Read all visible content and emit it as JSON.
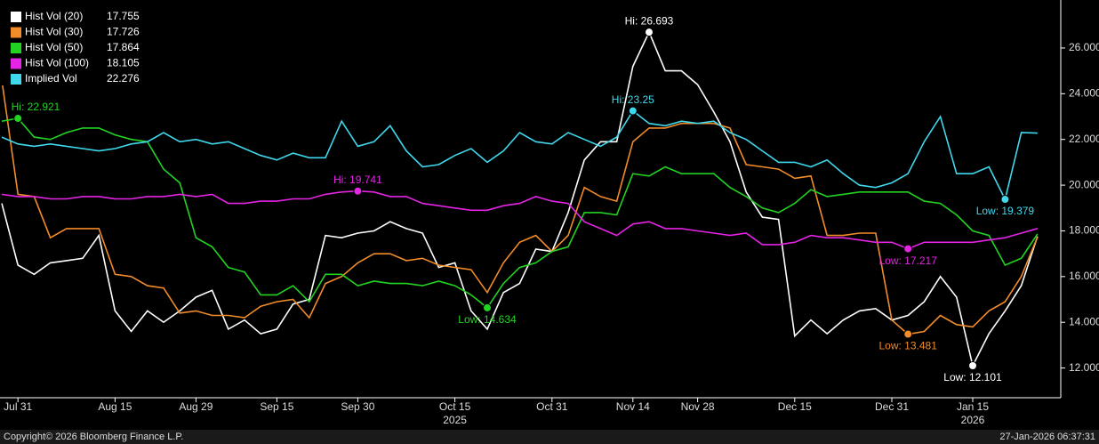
{
  "chart_data": {
    "type": "line",
    "categories": [
      null,
      "Jul 31",
      null,
      null,
      null,
      null,
      null,
      "Aug 15",
      null,
      null,
      null,
      null,
      "Aug 29",
      null,
      null,
      null,
      null,
      "Sep 15",
      null,
      null,
      null,
      null,
      "Sep 30",
      null,
      null,
      null,
      null,
      null,
      "Oct 15",
      null,
      null,
      null,
      null,
      null,
      "Oct 31",
      null,
      null,
      null,
      null,
      "Nov 14",
      null,
      null,
      null,
      "Nov 28",
      null,
      null,
      null,
      null,
      null,
      "Dec 15",
      null,
      null,
      null,
      null,
      null,
      "Dec 31",
      null,
      null,
      null,
      null,
      "Jan 15",
      null,
      null,
      null,
      null
    ],
    "x_years": [
      "2025",
      "2026"
    ],
    "ylim": [
      10.7,
      28.1
    ],
    "yticks": [
      {
        "value": 12,
        "label": "12.000"
      },
      {
        "value": 14,
        "label": "14.000"
      },
      {
        "value": 16,
        "label": "16.000"
      },
      {
        "value": 18,
        "label": "18.000"
      },
      {
        "value": 20,
        "label": "20.000"
      },
      {
        "value": 22,
        "label": "22.000"
      },
      {
        "value": 24,
        "label": "24.000"
      },
      {
        "value": 26,
        "label": "26.000"
      }
    ],
    "series": [
      {
        "name": "Hist Vol (20)",
        "color": "#ffffff",
        "values": [
          19.2,
          16.5,
          16.1,
          16.6,
          16.7,
          16.8,
          17.8,
          14.5,
          13.6,
          14.5,
          14.0,
          14.5,
          15.1,
          15.4,
          13.7,
          14.1,
          13.5,
          13.7,
          14.8,
          15.0,
          17.8,
          17.7,
          17.9,
          18.0,
          18.4,
          18.1,
          17.9,
          16.4,
          16.6,
          14.5,
          13.7,
          15.3,
          15.7,
          17.2,
          17.1,
          18.8,
          21.1,
          21.9,
          21.9,
          25.2,
          26.693,
          25.0,
          25.0,
          24.4,
          23.2,
          21.9,
          19.7,
          18.6,
          18.5,
          13.4,
          14.1,
          13.5,
          14.1,
          14.5,
          14.6,
          14.1,
          14.3,
          14.9,
          16.0,
          15.1,
          12.101,
          13.5,
          14.5,
          15.6,
          17.755
        ],
        "annotations": [
          {
            "index": 40,
            "label": "Hi: 26.693",
            "kind": "hi"
          },
          {
            "index": 60,
            "label": "Low: 12.101",
            "kind": "low"
          }
        ]
      },
      {
        "name": "Hist Vol (30)",
        "color": "#f28c28",
        "values": [
          24.6,
          19.6,
          19.5,
          17.7,
          18.1,
          18.1,
          18.1,
          16.1,
          16.0,
          15.6,
          15.5,
          14.4,
          14.5,
          14.3,
          14.3,
          14.2,
          14.7,
          14.9,
          15.0,
          14.2,
          15.7,
          16.0,
          16.6,
          17.0,
          17.0,
          16.7,
          16.8,
          16.5,
          16.4,
          16.3,
          15.3,
          16.6,
          17.5,
          17.8,
          17.1,
          17.8,
          19.9,
          19.5,
          19.3,
          21.9,
          22.5,
          22.5,
          22.7,
          22.7,
          22.7,
          22.5,
          20.9,
          20.8,
          20.7,
          20.3,
          20.4,
          17.8,
          17.8,
          17.9,
          17.9,
          14.1,
          13.481,
          13.6,
          14.3,
          13.9,
          13.8,
          14.5,
          14.9,
          16.0,
          17.726
        ],
        "annotations": [
          {
            "index": 56,
            "label": "Low: 13.481",
            "kind": "low"
          }
        ]
      },
      {
        "name": "Hist Vol (50)",
        "color": "#22d322",
        "values": [
          22.8,
          22.921,
          22.1,
          22.0,
          22.3,
          22.5,
          22.5,
          22.2,
          22.0,
          21.9,
          20.7,
          20.1,
          17.7,
          17.3,
          16.4,
          16.2,
          15.2,
          15.2,
          15.6,
          14.9,
          16.1,
          16.1,
          15.6,
          15.8,
          15.7,
          15.7,
          15.6,
          15.8,
          15.6,
          15.2,
          14.634,
          15.7,
          16.4,
          16.6,
          17.1,
          17.3,
          18.8,
          18.8,
          18.7,
          20.5,
          20.4,
          20.8,
          20.5,
          20.5,
          20.5,
          19.9,
          19.5,
          19.0,
          18.8,
          19.2,
          19.8,
          19.5,
          19.6,
          19.7,
          19.7,
          19.7,
          19.7,
          19.3,
          19.2,
          18.7,
          18.0,
          17.8,
          16.5,
          16.8,
          17.864
        ],
        "annotations": [
          {
            "index": 1,
            "label": "Hi: 22.921",
            "kind": "hi"
          },
          {
            "index": 30,
            "label": "Low: 14.634",
            "kind": "low"
          }
        ]
      },
      {
        "name": "Hist Vol (100)",
        "color": "#e524e5",
        "values": [
          19.6,
          19.5,
          19.5,
          19.4,
          19.4,
          19.5,
          19.5,
          19.4,
          19.4,
          19.5,
          19.5,
          19.6,
          19.5,
          19.6,
          19.2,
          19.2,
          19.3,
          19.3,
          19.4,
          19.4,
          19.6,
          19.7,
          19.741,
          19.7,
          19.5,
          19.5,
          19.2,
          19.1,
          19.0,
          18.9,
          18.9,
          19.1,
          19.2,
          19.5,
          19.3,
          19.2,
          18.4,
          18.1,
          17.8,
          18.3,
          18.4,
          18.1,
          18.1,
          18.0,
          17.9,
          17.8,
          17.9,
          17.4,
          17.4,
          17.5,
          17.8,
          17.7,
          17.7,
          17.6,
          17.5,
          17.5,
          17.217,
          17.5,
          17.5,
          17.5,
          17.5,
          17.6,
          17.7,
          17.9,
          18.105
        ],
        "annotations": [
          {
            "index": 22,
            "label": "Hi: 19.741",
            "kind": "hi"
          },
          {
            "index": 56,
            "label": "Low: 17.217",
            "kind": "low"
          }
        ]
      },
      {
        "name": "Implied Vol",
        "color": "#3fd8ec",
        "values": [
          22.1,
          21.8,
          21.7,
          21.8,
          21.7,
          21.6,
          21.5,
          21.6,
          21.8,
          21.9,
          22.3,
          21.9,
          22.0,
          21.8,
          21.9,
          21.6,
          21.3,
          21.1,
          21.4,
          21.2,
          21.2,
          22.8,
          21.7,
          21.9,
          22.6,
          21.5,
          20.8,
          20.9,
          21.3,
          21.6,
          21.0,
          21.5,
          22.3,
          21.9,
          21.8,
          22.3,
          22.0,
          21.7,
          22.1,
          23.25,
          22.7,
          22.6,
          22.8,
          22.7,
          22.8,
          22.3,
          22.0,
          21.5,
          21.0,
          21.0,
          20.8,
          21.1,
          20.5,
          20.0,
          19.9,
          20.1,
          20.5,
          21.9,
          23.0,
          20.5,
          20.5,
          20.8,
          19.379,
          22.3,
          22.276
        ],
        "annotations": [
          {
            "index": 39,
            "label": "Hi: 23.25",
            "kind": "hi"
          },
          {
            "index": 62,
            "label": "Low: 19.379",
            "kind": "low"
          }
        ]
      }
    ],
    "footer_left": "Copyright© 2026 Bloomberg Finance L.P.",
    "footer_right": "27-Jan-2026 06:37:31"
  }
}
